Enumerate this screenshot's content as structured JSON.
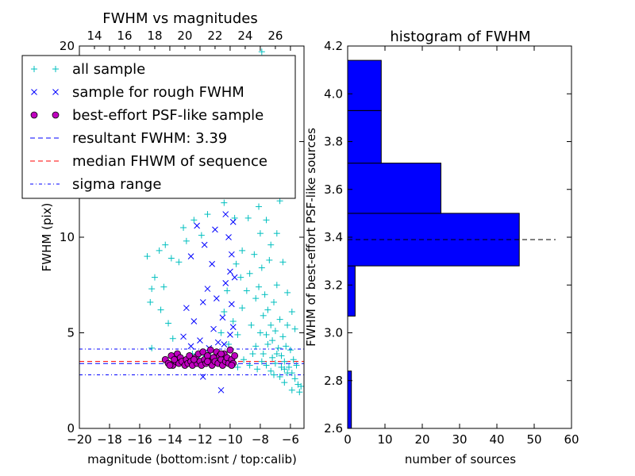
{
  "chart_data": [
    {
      "type": "scatter",
      "title": "FWHM vs magnitudes",
      "xlabel": "magnitude (bottom:isnt / top:calib)",
      "ylabel": "FWHM (pix)",
      "xlim": [
        -20,
        -5.1
      ],
      "ylim": [
        0,
        20
      ],
      "x_ticks": [
        "−20",
        "−18",
        "−16",
        "−14",
        "−12",
        "−10",
        "−8",
        "−6"
      ],
      "y_ticks": [
        "0",
        "5",
        "10",
        "15",
        "20"
      ],
      "top_ticks": [
        "14",
        "16",
        "18",
        "20",
        "22",
        "24",
        "26"
      ],
      "top_tick_values": [
        -19.0,
        -17.0,
        -15.0,
        -13.0,
        -11.0,
        -9.0,
        -7.0
      ],
      "grid": false,
      "legend": {
        "placement": "upper-left",
        "entries": [
          {
            "label": "all sample",
            "marker": "+",
            "color": "#00bfbf"
          },
          {
            "label": "sample for rough FWHM",
            "marker": "x",
            "color": "#0000ff"
          },
          {
            "label": "best-effort PSF-like sample",
            "marker": "o",
            "color": "#bf00bf"
          },
          {
            "label": "resultant FWHM: 3.39",
            "style": "dashed",
            "color": "#0000ff"
          },
          {
            "label": "median FHWM of sequence",
            "style": "dashed",
            "color": "#ff0000"
          },
          {
            "label": "sigma range",
            "style": "dashdot",
            "color": "#0000ff"
          }
        ]
      },
      "hlines": [
        {
          "y": 3.39,
          "style": "dashed",
          "color": "#0000ff"
        },
        {
          "y": 3.5,
          "style": "dashed",
          "color": "#ff0000"
        },
        {
          "y": 4.15,
          "style": "dashdot",
          "color": "#0000ff"
        },
        {
          "y": 2.8,
          "style": "dashdot",
          "color": "#0000ff"
        }
      ],
      "series": [
        {
          "name": "all sample",
          "marker": "+",
          "color": "#00bfbf",
          "points": [
            [
              -15.5,
              9.0
            ],
            [
              -14.7,
              9.3
            ],
            [
              -14.3,
              9.6
            ],
            [
              -13.9,
              8.9
            ],
            [
              -13.4,
              8.7
            ],
            [
              -13.1,
              10.5
            ],
            [
              -12.9,
              9.8
            ],
            [
              -12.4,
              10.9
            ],
            [
              -11.9,
              10.1
            ],
            [
              -11.5,
              11.2
            ],
            [
              -11.2,
              12.5
            ],
            [
              -10.7,
              13.3
            ],
            [
              -10.4,
              11.8
            ],
            [
              -10.1,
              13.0
            ],
            [
              -9.9,
              12.2
            ],
            [
              -9.7,
              11.0
            ],
            [
              -9.4,
              13.6
            ],
            [
              -9.1,
              12.4
            ],
            [
              -8.9,
              14.6
            ],
            [
              -8.6,
              15.2
            ],
            [
              -8.2,
              14.1
            ],
            [
              -7.9,
              19.7
            ],
            [
              -7.7,
              19.2
            ],
            [
              -7.5,
              14.9
            ],
            [
              -7.3,
              14.0
            ],
            [
              -7.0,
              12.7
            ],
            [
              -6.7,
              11.9
            ],
            [
              -15.3,
              6.6
            ],
            [
              -15.2,
              7.3
            ],
            [
              -15.0,
              7.9
            ],
            [
              -14.6,
              6.2
            ],
            [
              -14.4,
              7.4
            ],
            [
              -14.1,
              5.5
            ],
            [
              -13.8,
              4.7
            ],
            [
              -13.6,
              3.9
            ],
            [
              -13.3,
              3.7
            ],
            [
              -12.5,
              3.9
            ],
            [
              -12.2,
              3.7
            ],
            [
              -11.6,
              3.8
            ],
            [
              -11.3,
              4.0
            ],
            [
              -11.0,
              3.7
            ],
            [
              -15.2,
              4.2
            ],
            [
              -10.6,
              5.0
            ],
            [
              -10.4,
              6.1
            ],
            [
              -10.2,
              7.2
            ],
            [
              -10.1,
              4.4
            ],
            [
              -9.8,
              5.6
            ],
            [
              -9.6,
              8.6
            ],
            [
              -9.3,
              7.9
            ],
            [
              -9.2,
              9.3
            ],
            [
              -8.8,
              11.0
            ],
            [
              -9.5,
              4.9
            ],
            [
              -9.2,
              6.3
            ],
            [
              -8.9,
              7.2
            ],
            [
              -8.7,
              8.1
            ],
            [
              -8.6,
              5.4
            ],
            [
              -8.4,
              9.1
            ],
            [
              -8.3,
              6.8
            ],
            [
              -8.1,
              7.4
            ],
            [
              -8.0,
              10.2
            ],
            [
              -7.9,
              8.4
            ],
            [
              -7.8,
              5.9
            ],
            [
              -7.7,
              7.0
            ],
            [
              -7.6,
              4.9
            ],
            [
              -7.5,
              6.2
            ],
            [
              -7.4,
              8.8
            ],
            [
              -7.3,
              5.4
            ],
            [
              -7.2,
              4.6
            ],
            [
              -7.1,
              6.6
            ],
            [
              -7.0,
              5.1
            ],
            [
              -6.9,
              7.5
            ],
            [
              -6.8,
              4.2
            ],
            [
              -6.7,
              5.7
            ],
            [
              -6.6,
              3.8
            ],
            [
              -6.5,
              4.8
            ],
            [
              -6.4,
              3.5
            ],
            [
              -6.3,
              4.3
            ],
            [
              -6.2,
              5.4
            ],
            [
              -6.1,
              3.2
            ],
            [
              -6.0,
              4.1
            ],
            [
              -5.9,
              2.9
            ],
            [
              -5.8,
              3.6
            ],
            [
              -5.7,
              2.6
            ],
            [
              -5.6,
              3.3
            ],
            [
              -5.5,
              2.3
            ],
            [
              -5.4,
              1.9
            ],
            [
              -5.3,
              2.2
            ],
            [
              -5.9,
              2.0
            ],
            [
              -6.4,
              2.4
            ],
            [
              -7.1,
              2.8
            ],
            [
              -8.3,
              4.3
            ],
            [
              -8.0,
              5.0
            ],
            [
              -7.8,
              3.9
            ],
            [
              -7.5,
              4.4
            ],
            [
              -7.2,
              3.7
            ],
            [
              -6.9,
              3.9
            ],
            [
              -6.6,
              3.2
            ],
            [
              -6.2,
              2.9
            ],
            [
              -9.9,
              3.4
            ],
            [
              -9.5,
              3.2
            ],
            [
              -9.1,
              3.6
            ],
            [
              -8.7,
              3.3
            ],
            [
              -8.5,
              3.9
            ],
            [
              -8.2,
              3.1
            ],
            [
              -7.9,
              3.5
            ],
            [
              -7.6,
              3.3
            ],
            [
              -7.3,
              3.0
            ],
            [
              -7.0,
              3.4
            ],
            [
              -6.7,
              2.7
            ],
            [
              -6.4,
              3.1
            ],
            [
              -8.4,
              12.8
            ],
            [
              -8.1,
              11.6
            ],
            [
              -7.8,
              13.4
            ],
            [
              -7.6,
              10.9
            ],
            [
              -7.3,
              9.6
            ],
            [
              -6.9,
              10.2
            ],
            [
              -6.5,
              8.7
            ],
            [
              -6.2,
              7.1
            ],
            [
              -5.9,
              6.1
            ],
            [
              -5.7,
              5.2
            ]
          ]
        },
        {
          "name": "sample for rough FWHM",
          "marker": "x",
          "color": "#0000ff",
          "points": [
            [
              -13.0,
              15.4
            ],
            [
              -11.3,
              15.6
            ],
            [
              -10.6,
              14.8
            ],
            [
              -12.2,
              10.6
            ],
            [
              -11.0,
              10.4
            ],
            [
              -10.3,
              11.2
            ],
            [
              -11.7,
              9.6
            ],
            [
              -10.1,
              10.0
            ],
            [
              -9.8,
              10.8
            ],
            [
              -12.6,
              9.0
            ],
            [
              -11.2,
              8.6
            ],
            [
              -10.0,
              8.2
            ],
            [
              -9.9,
              9.1
            ],
            [
              -11.5,
              7.3
            ],
            [
              -10.3,
              7.6
            ],
            [
              -9.7,
              7.9
            ],
            [
              -12.9,
              6.3
            ],
            [
              -11.8,
              6.6
            ],
            [
              -10.9,
              6.8
            ],
            [
              -9.9,
              6.5
            ],
            [
              -12.4,
              5.6
            ],
            [
              -11.1,
              5.2
            ],
            [
              -10.5,
              5.8
            ],
            [
              -9.8,
              5.3
            ],
            [
              -13.1,
              4.8
            ],
            [
              -12.0,
              4.6
            ],
            [
              -10.8,
              4.5
            ],
            [
              -10.0,
              4.9
            ],
            [
              -12.6,
              4.3
            ],
            [
              -11.4,
              4.2
            ],
            [
              -10.4,
              4.4
            ],
            [
              -11.8,
              2.7
            ],
            [
              -10.6,
              2.0
            ]
          ]
        },
        {
          "name": "best-effort PSF-like sample",
          "marker": "o",
          "color": "#bf00bf",
          "points": [
            [
              -14.3,
              3.6
            ],
            [
              -14.1,
              3.4
            ],
            [
              -13.9,
              3.8
            ],
            [
              -13.8,
              3.3
            ],
            [
              -13.6,
              3.5
            ],
            [
              -13.5,
              3.9
            ],
            [
              -13.4,
              3.4
            ],
            [
              -13.3,
              3.7
            ],
            [
              -13.2,
              3.5
            ],
            [
              -13.0,
              3.3
            ],
            [
              -12.9,
              3.6
            ],
            [
              -12.8,
              3.4
            ],
            [
              -12.7,
              3.8
            ],
            [
              -12.6,
              3.5
            ],
            [
              -12.5,
              3.3
            ],
            [
              -12.3,
              3.7
            ],
            [
              -12.2,
              3.4
            ],
            [
              -12.1,
              3.9
            ],
            [
              -12.0,
              3.5
            ],
            [
              -11.9,
              3.3
            ],
            [
              -11.8,
              4.0
            ],
            [
              -11.7,
              3.6
            ],
            [
              -11.6,
              3.4
            ],
            [
              -11.5,
              3.8
            ],
            [
              -11.4,
              3.5
            ],
            [
              -11.3,
              4.1
            ],
            [
              -11.2,
              3.3
            ],
            [
              -11.1,
              3.7
            ],
            [
              -11.0,
              3.5
            ],
            [
              -10.9,
              4.0
            ],
            [
              -10.8,
              3.4
            ],
            [
              -10.7,
              3.8
            ],
            [
              -10.6,
              3.6
            ],
            [
              -10.5,
              3.3
            ],
            [
              -10.4,
              3.9
            ],
            [
              -10.3,
              3.5
            ],
            [
              -10.2,
              3.7
            ],
            [
              -10.1,
              3.4
            ],
            [
              -10.0,
              4.1
            ],
            [
              -9.9,
              3.6
            ],
            [
              -9.8,
              3.4
            ],
            [
              -9.7,
              3.8
            ],
            [
              -13.7,
              3.6
            ],
            [
              -12.4,
              3.6
            ],
            [
              -11.5,
              3.5
            ],
            [
              -10.6,
              3.9
            ],
            [
              -9.9,
              3.3
            ],
            [
              -14.0,
              3.3
            ]
          ]
        }
      ]
    },
    {
      "type": "bar",
      "orientation": "horizontal",
      "title": "histogram of FWHM",
      "xlabel": "number of sources",
      "ylabel": "FWHM of best-effort PSF-like sources",
      "xlim": [
        0,
        60
      ],
      "ylim": [
        2.6,
        4.2
      ],
      "x_ticks": [
        "0",
        "10",
        "20",
        "30",
        "40",
        "50",
        "60"
      ],
      "y_ticks": [
        "2.6",
        "2.8",
        "3.0",
        "3.2",
        "3.4",
        "3.6",
        "3.8",
        "4.0",
        "4.2"
      ],
      "color": "#0000ff",
      "bins": [
        {
          "low": 2.52,
          "high": 2.84,
          "count": 1
        },
        {
          "low": 2.84,
          "high": 3.07,
          "count": 0
        },
        {
          "low": 3.07,
          "high": 3.28,
          "count": 2
        },
        {
          "low": 3.28,
          "high": 3.5,
          "count": 46
        },
        {
          "low": 3.5,
          "high": 3.71,
          "count": 25
        },
        {
          "low": 3.71,
          "high": 3.93,
          "count": 9
        },
        {
          "low": 3.93,
          "high": 4.14,
          "count": 9
        }
      ],
      "hline": {
        "y": 3.39,
        "style": "dashed",
        "color": "#000000"
      },
      "grid": false
    }
  ]
}
